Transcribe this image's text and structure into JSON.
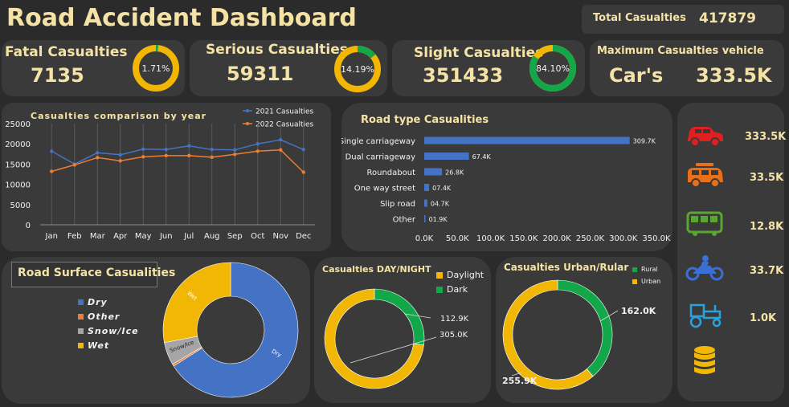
{
  "header": {
    "title": "Road Accident Dashboard",
    "total_label": "Total  Casualties",
    "total_value": "417879"
  },
  "kpis": {
    "fatal": {
      "label": "Fatal  Casualties",
      "value": "7135",
      "pct_label": "1.71%",
      "pct": 1.71
    },
    "serious": {
      "label": "Serious Casualties",
      "value": "59311",
      "pct_label": "14.19%",
      "pct": 14.19
    },
    "slight": {
      "label": "Slight Casualties",
      "value": "351433",
      "pct_label": "84.10%",
      "pct": 84.1
    },
    "max_vehicle": {
      "label": "Maximum  Casualties vehicle",
      "vehicle": "Car's",
      "value": "333.5K"
    }
  },
  "vehicles": [
    {
      "icon": "car-icon",
      "value": "333.5K",
      "color": "#e02020"
    },
    {
      "icon": "van-icon",
      "value": "33.5K",
      "color": "#e8701a"
    },
    {
      "icon": "bus-icon",
      "value": "12.8K",
      "color": "#5ba532"
    },
    {
      "icon": "motorcycle-icon",
      "value": "33.7K",
      "color": "#3b6fd6"
    },
    {
      "icon": "tractor-icon",
      "value": "1.0K",
      "color": "#29a3e0"
    },
    {
      "icon": "database-icon",
      "value": "",
      "color": "#f2b705"
    }
  ],
  "colors": {
    "accent": "#f5e3a6",
    "yellow": "#f2b705",
    "green": "#12a84a",
    "blue": "#4472c4",
    "orange": "#ed7d31",
    "gray": "#a5a5a5"
  },
  "chart_data": [
    {
      "type": "line",
      "title": "Casualties comparison by year",
      "categories": [
        "Jan",
        "Feb",
        "Mar",
        "Apr",
        "May",
        "Jun",
        "Jul",
        "Aug",
        "Sep",
        "Oct",
        "Nov",
        "Dec"
      ],
      "series": [
        {
          "name": "2021 Casualties",
          "color": "#4472c4",
          "values": [
            18200,
            15000,
            17800,
            17300,
            18700,
            18600,
            19500,
            18600,
            18500,
            20000,
            21000,
            18600
          ]
        },
        {
          "name": "2022 Casualties",
          "color": "#ed7d31",
          "values": [
            13200,
            14800,
            16600,
            15800,
            16800,
            17100,
            17100,
            16700,
            17400,
            18200,
            18500,
            13000
          ]
        }
      ],
      "yticks": [
        "0",
        "5000",
        "10000",
        "15000",
        "20000",
        "25000"
      ],
      "ylim": [
        0,
        25000
      ],
      "legend": "top-right"
    },
    {
      "type": "bar",
      "title": "Road type Casualities",
      "orientation": "horizontal",
      "categories": [
        "Single carriageway",
        "Dual carriageway",
        "Roundabout",
        "One way street",
        "Slip road",
        "Other"
      ],
      "values": [
        309.7,
        67.4,
        26.8,
        7.4,
        4.7,
        1.9
      ],
      "labels": [
        "309.7K",
        "67.4K",
        "26.8K",
        "07.4K",
        "04.7K",
        "01.9K"
      ],
      "xticks": [
        "0.0K",
        "50.0K",
        "100.0K",
        "150.0K",
        "200.0K",
        "250.0K",
        "300.0K",
        "350.0K"
      ],
      "xlim": [
        0,
        350
      ]
    },
    {
      "type": "pie",
      "title": "Road Surface Casualities",
      "donut": true,
      "legend_entries": [
        "Dry",
        "Other",
        "Snow/Ice",
        "Wet"
      ],
      "slices": [
        {
          "name": "Dry",
          "value": 66,
          "color": "#4472c4",
          "label": "Dry"
        },
        {
          "name": "Other",
          "value": 0.5,
          "color": "#ed7d31",
          "label": ""
        },
        {
          "name": "Snow/Ice",
          "value": 5.5,
          "color": "#a5a5a5",
          "label": "Snow/Ice"
        },
        {
          "name": "Wet",
          "value": 28,
          "color": "#f2b705",
          "label": "Wet"
        }
      ]
    },
    {
      "type": "pie",
      "title": "Casualties DAY/NIGHT",
      "donut": true,
      "legend_entries": [
        "Daylight",
        "Dark"
      ],
      "slices": [
        {
          "name": "Dark",
          "value": 112.9,
          "color": "#12a84a",
          "label": "112.9K"
        },
        {
          "name": "Daylight",
          "value": 305.0,
          "color": "#f2b705",
          "label": "305.0K"
        }
      ]
    },
    {
      "type": "pie",
      "title": "Casualties Urban/Rular",
      "donut": true,
      "legend_entries": [
        "Rural",
        "Urban"
      ],
      "slices": [
        {
          "name": "Rural",
          "value": 162.0,
          "color": "#12a84a",
          "label": "162.0K"
        },
        {
          "name": "Urban",
          "value": 255.9,
          "color": "#f2b705",
          "label": "255.9K"
        }
      ]
    }
  ]
}
